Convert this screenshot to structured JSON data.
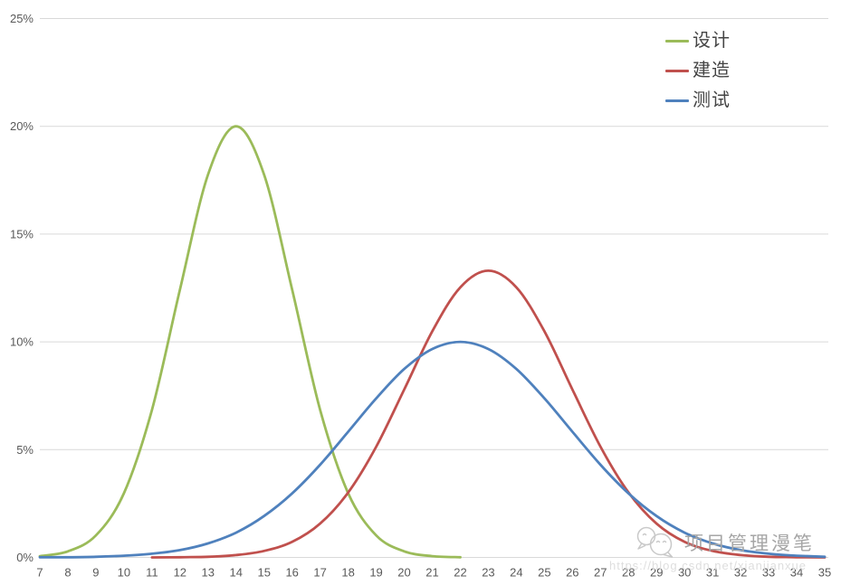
{
  "chart_data": {
    "type": "line",
    "title": "",
    "xlabel": "",
    "ylabel": "",
    "xlim": [
      7,
      35
    ],
    "ylim": [
      0,
      25
    ],
    "xticks": [
      7,
      8,
      9,
      10,
      11,
      12,
      13,
      14,
      15,
      16,
      17,
      18,
      19,
      20,
      21,
      22,
      23,
      24,
      25,
      26,
      27,
      28,
      29,
      30,
      31,
      32,
      33,
      34,
      35
    ],
    "ytick_labels": [
      "0%",
      "5%",
      "10%",
      "15%",
      "20%",
      "25%"
    ],
    "ytick_values": [
      0,
      5,
      10,
      15,
      20,
      25
    ],
    "grid": "horizontal",
    "gridline_color": "#d9d9d9",
    "tick_label_color": "#595959",
    "legend_position": "top-right",
    "series": [
      {
        "name": "设计",
        "color": "#9bbb59",
        "x_start": 7,
        "values": [
          0.06,
          0.28,
          1.02,
          2.98,
          6.85,
          12.43,
          17.76,
          20,
          17.76,
          12.43,
          6.85,
          2.98,
          1.02,
          0.28,
          0.06,
          0.01
        ]
      },
      {
        "name": "建造",
        "color": "#c0504d",
        "x_start": 11,
        "values": [
          0,
          0.01,
          0.03,
          0.11,
          0.3,
          0.72,
          1.57,
          3.01,
          5.14,
          7.79,
          10.49,
          12.53,
          13.3,
          12.53,
          10.49,
          7.79,
          5.14,
          3.01,
          1.57,
          0.72,
          0.3,
          0.11,
          0.03,
          0.01,
          0
        ]
      },
      {
        "name": "测试",
        "color": "#4f81bd",
        "x_start": 7,
        "values": [
          0.01,
          0.01,
          0.03,
          0.08,
          0.17,
          0.34,
          0.65,
          1.15,
          1.92,
          2.97,
          4.3,
          5.83,
          7.38,
          8.74,
          9.67,
          10,
          9.67,
          8.74,
          7.38,
          5.83,
          4.3,
          2.97,
          1.92,
          1.15,
          0.65,
          0.34,
          0.17,
          0.08,
          0.03
        ]
      }
    ]
  },
  "watermark": {
    "title": "项目管理漫笔",
    "url": "https://blog.csdn.net/xianjianxue",
    "icon": "chat-bubbles-icon"
  }
}
